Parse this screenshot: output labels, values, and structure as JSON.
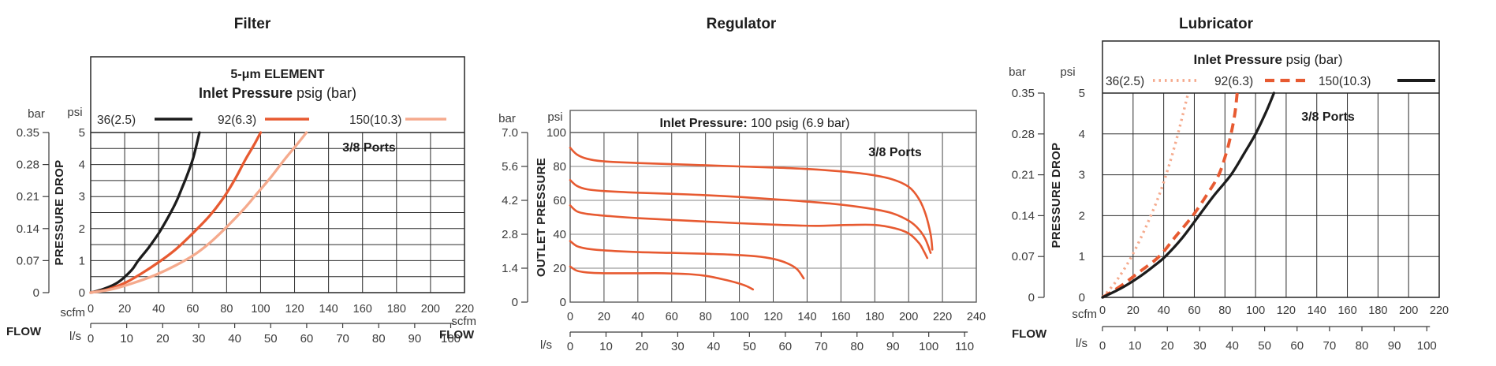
{
  "page": {
    "background": "#ffffff"
  },
  "colors": {
    "black_line": "#1c1c1c",
    "orange_line": "#e75a31",
    "salmon_line": "#f5aa8d",
    "text_dark": "#1d1d1d",
    "axis_text": "#3b3b3b"
  },
  "chart_data": [
    {
      "id": "filter",
      "type": "line",
      "title": "Filter",
      "header_lines": [
        {
          "bold": "5-μm ELEMENT",
          "regular": ""
        },
        {
          "bold": "Inlet Pressure",
          "regular": " psig (bar)"
        }
      ],
      "legend": [
        {
          "label": "36(2.5)",
          "color": "black_line",
          "dash": "solid",
          "width": 3.4
        },
        {
          "label": "92(6.3)",
          "color": "orange_line",
          "dash": "solid",
          "width": 3.4
        },
        {
          "label": "150(10.3)",
          "color": "salmon_line",
          "dash": "solid",
          "width": 3.4
        }
      ],
      "ports_label": "3/8 Ports",
      "ylabel": "PRESSURE DROP",
      "y_units": {
        "left": "bar",
        "right": "psi"
      },
      "bar_ticks": [
        "0.35",
        "0.28",
        "0.21",
        "0.14",
        "0.07",
        "0"
      ],
      "psi_ticks": [
        "5",
        "4",
        "3",
        "2",
        "1",
        "0"
      ],
      "psi_max": 5,
      "xlabel": "FLOW",
      "x_units": {
        "top": "scfm",
        "bottom": "l/s"
      },
      "scfm_ticks": [
        0,
        20,
        40,
        60,
        80,
        100,
        120,
        140,
        160,
        180,
        200,
        220
      ],
      "ls_ticks": [
        0,
        10,
        20,
        30,
        40,
        50,
        60,
        70,
        80,
        90,
        100
      ],
      "scfm_max": 220,
      "series": [
        {
          "name": "36(2.5)",
          "color": "black_line",
          "dash": "solid",
          "width": 3.3,
          "points": [
            [
              0,
              0
            ],
            [
              8,
              0.12
            ],
            [
              16,
              0.32
            ],
            [
              24,
              0.7
            ],
            [
              28,
              1
            ],
            [
              34,
              1.4
            ],
            [
              40,
              1.85
            ],
            [
              45,
              2.3
            ],
            [
              50,
              2.8
            ],
            [
              54,
              3.3
            ],
            [
              57,
              3.7
            ],
            [
              60,
              4.15
            ],
            [
              62,
              4.55
            ],
            [
              64,
              5
            ]
          ]
        },
        {
          "name": "92(6.3)",
          "color": "orange_line",
          "dash": "solid",
          "width": 3.3,
          "points": [
            [
              0,
              0
            ],
            [
              10,
              0.1
            ],
            [
              20,
              0.3
            ],
            [
              30,
              0.6
            ],
            [
              40,
              0.95
            ],
            [
              50,
              1.35
            ],
            [
              60,
              1.85
            ],
            [
              70,
              2.4
            ],
            [
              78,
              2.95
            ],
            [
              85,
              3.55
            ],
            [
              91,
              4.15
            ],
            [
              96,
              4.6
            ],
            [
              100,
              5
            ]
          ]
        },
        {
          "name": "150(10.3)",
          "color": "salmon_line",
          "dash": "solid",
          "width": 3.3,
          "points": [
            [
              0,
              0
            ],
            [
              12,
              0.1
            ],
            [
              25,
              0.3
            ],
            [
              38,
              0.55
            ],
            [
              50,
              0.85
            ],
            [
              60,
              1.15
            ],
            [
              70,
              1.55
            ],
            [
              80,
              2.05
            ],
            [
              90,
              2.6
            ],
            [
              98,
              3.1
            ],
            [
              106,
              3.6
            ],
            [
              114,
              4.15
            ],
            [
              121,
              4.6
            ],
            [
              127,
              5
            ]
          ]
        }
      ]
    },
    {
      "id": "regulator",
      "type": "line",
      "title": "Regulator",
      "header_lines": [
        {
          "bold": "Inlet Pressure:",
          "regular": " 100 psig (6.9 bar)"
        }
      ],
      "legend": [],
      "ports_label": "3/8 Ports",
      "ylabel": "OUTLET PRESSURE",
      "y_units": {
        "left": "bar",
        "right": "psi"
      },
      "bar_ticks": [
        "7.0",
        "5.6",
        "4.2",
        "2.8",
        "1.4",
        "0"
      ],
      "psi_ticks": [
        "100",
        "80",
        "60",
        "40",
        "20",
        "0"
      ],
      "psi_max": 100,
      "xlabel": "FLOW",
      "x_units": {
        "top": "scfm",
        "bottom": "l/s"
      },
      "scfm_ticks": [
        0,
        20,
        40,
        60,
        80,
        100,
        120,
        140,
        160,
        180,
        200,
        220,
        240
      ],
      "ls_ticks": [
        0,
        10,
        20,
        30,
        40,
        50,
        60,
        70,
        80,
        90,
        100,
        110
      ],
      "scfm_max": 240,
      "series": [
        {
          "name": "curve-90psi",
          "color": "orange_line",
          "dash": "solid",
          "width": 2.6,
          "points": [
            [
              0,
              91
            ],
            [
              4,
              87
            ],
            [
              10,
              84.5
            ],
            [
              20,
              83
            ],
            [
              40,
              82
            ],
            [
              70,
              81
            ],
            [
              100,
              80
            ],
            [
              130,
              79
            ],
            [
              155,
              77.5
            ],
            [
              175,
              75.5
            ],
            [
              190,
              72.5
            ],
            [
              200,
              68
            ],
            [
              206,
              61
            ],
            [
              210,
              52
            ],
            [
              213,
              40
            ],
            [
              214,
              31
            ]
          ]
        },
        {
          "name": "curve-70psi",
          "color": "orange_line",
          "dash": "solid",
          "width": 2.6,
          "points": [
            [
              0,
              72
            ],
            [
              4,
              68.5
            ],
            [
              10,
              66.5
            ],
            [
              20,
              65.5
            ],
            [
              40,
              64.5
            ],
            [
              70,
              63.5
            ],
            [
              100,
              62
            ],
            [
              130,
              60
            ],
            [
              155,
              58
            ],
            [
              175,
              55.5
            ],
            [
              190,
              52.5
            ],
            [
              200,
              48
            ],
            [
              206,
              43
            ],
            [
              210,
              37
            ],
            [
              213,
              29
            ]
          ]
        },
        {
          "name": "curve-55psi",
          "color": "orange_line",
          "dash": "solid",
          "width": 2.6,
          "points": [
            [
              0,
              57
            ],
            [
              4,
              53.5
            ],
            [
              10,
              52
            ],
            [
              20,
              51
            ],
            [
              40,
              49.5
            ],
            [
              70,
              48
            ],
            [
              100,
              46.5
            ],
            [
              125,
              45.5
            ],
            [
              145,
              45
            ],
            [
              165,
              45.5
            ],
            [
              180,
              45.5
            ],
            [
              192,
              43.5
            ],
            [
              200,
              40.5
            ],
            [
              206,
              35
            ],
            [
              209,
              30
            ],
            [
              211,
              26
            ]
          ]
        },
        {
          "name": "curve-35psi",
          "color": "orange_line",
          "dash": "solid",
          "width": 2.6,
          "points": [
            [
              0,
              36
            ],
            [
              4,
              33
            ],
            [
              10,
              31.5
            ],
            [
              20,
              30.5
            ],
            [
              40,
              29.5
            ],
            [
              60,
              29
            ],
            [
              80,
              28.5
            ],
            [
              95,
              28
            ],
            [
              110,
              27
            ],
            [
              120,
              25.5
            ],
            [
              128,
              23
            ],
            [
              134,
              19.5
            ],
            [
              138,
              14
            ]
          ]
        },
        {
          "name": "curve-20psi",
          "color": "orange_line",
          "dash": "solid",
          "width": 2.6,
          "points": [
            [
              0,
              21
            ],
            [
              4,
              18.5
            ],
            [
              10,
              17.5
            ],
            [
              20,
              17
            ],
            [
              40,
              17
            ],
            [
              55,
              17
            ],
            [
              70,
              16.5
            ],
            [
              80,
              15.5
            ],
            [
              90,
              13.5
            ],
            [
              98,
              11.5
            ],
            [
              104,
              9.5
            ],
            [
              108,
              7.5
            ]
          ]
        }
      ]
    },
    {
      "id": "lubricator",
      "type": "line",
      "title": "Lubricator",
      "header_lines": [
        {
          "bold": "Inlet Pressure",
          "regular": " psig (bar)"
        }
      ],
      "legend": [
        {
          "label": "36(2.5)",
          "color": "salmon_line",
          "dash": "dotted",
          "width": 3.8
        },
        {
          "label": "92(6.3)",
          "color": "orange_line",
          "dash": "dashed",
          "width": 4.2
        },
        {
          "label": "150(10.3)",
          "color": "black_line",
          "dash": "solid",
          "width": 4.0
        }
      ],
      "ports_label": "3/8 Ports",
      "ylabel": "PRESSURE DROP",
      "y_units": {
        "left": "bar",
        "right": "psi"
      },
      "bar_ticks": [
        "0.35",
        "0.28",
        "0.21",
        "0.14",
        "0.07",
        "0"
      ],
      "psi_ticks": [
        "5",
        "4",
        "3",
        "2",
        "1",
        "0"
      ],
      "psi_max": 5,
      "xlabel": "FLOW",
      "x_units": {
        "top": "scfm",
        "bottom": "l/s"
      },
      "scfm_ticks": [
        0,
        20,
        40,
        60,
        80,
        100,
        120,
        140,
        160,
        180,
        200,
        220
      ],
      "ls_ticks": [
        0,
        10,
        20,
        30,
        40,
        50,
        60,
        70,
        80,
        90,
        100
      ],
      "scfm_max": 220,
      "series": [
        {
          "name": "36(2.5)",
          "color": "salmon_line",
          "dash": "dotted",
          "width": 3.4,
          "points": [
            [
              0,
              0
            ],
            [
              7,
              0.3
            ],
            [
              13,
              0.62
            ],
            [
              19,
              1
            ],
            [
              25,
              1.45
            ],
            [
              31,
              1.95
            ],
            [
              37,
              2.5
            ],
            [
              42,
              3.05
            ],
            [
              46,
              3.55
            ],
            [
              50,
              4.1
            ],
            [
              53,
              4.55
            ],
            [
              56,
              5
            ]
          ]
        },
        {
          "name": "92(6.3)",
          "color": "orange_line",
          "dash": "dashed",
          "width": 3.9,
          "points": [
            [
              0,
              0
            ],
            [
              12,
              0.28
            ],
            [
              24,
              0.62
            ],
            [
              37,
              1
            ],
            [
              48,
              1.5
            ],
            [
              59,
              2
            ],
            [
              68,
              2.5
            ],
            [
              76,
              3
            ],
            [
              81,
              3.55
            ],
            [
              84,
              4
            ],
            [
              86.5,
              4.5
            ],
            [
              88,
              5
            ]
          ]
        },
        {
          "name": "150(10.3)",
          "color": "black_line",
          "dash": "solid",
          "width": 3.3,
          "points": [
            [
              0,
              0
            ],
            [
              12,
              0.22
            ],
            [
              24,
              0.5
            ],
            [
              34,
              0.78
            ],
            [
              41,
              1
            ],
            [
              52,
              1.45
            ],
            [
              63,
              2
            ],
            [
              73,
              2.5
            ],
            [
              84,
              3
            ],
            [
              93,
              3.55
            ],
            [
              100,
              4
            ],
            [
              107,
              4.55
            ],
            [
              112,
              5
            ]
          ]
        }
      ]
    }
  ]
}
